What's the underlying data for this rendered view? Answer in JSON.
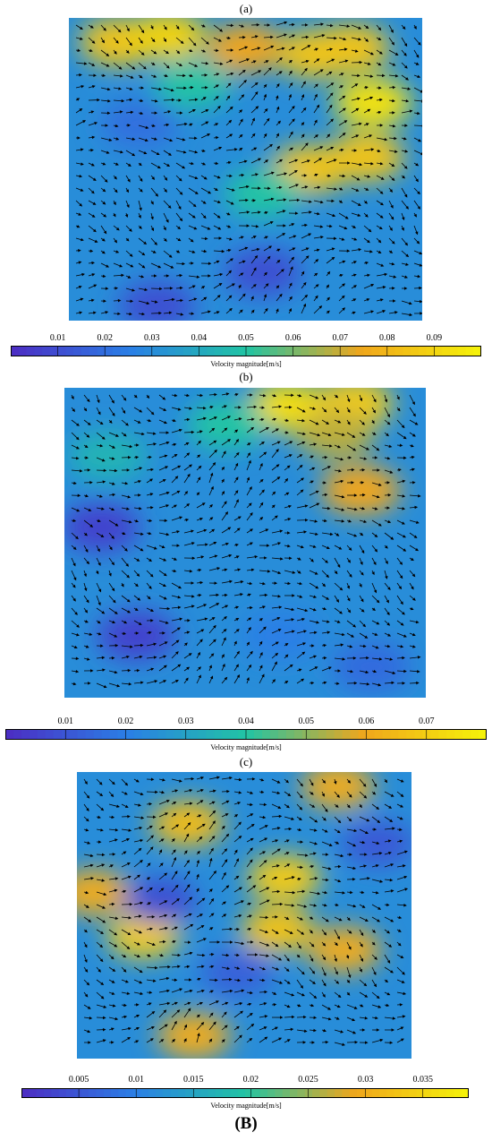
{
  "figure_label": "(B)",
  "colors": {
    "low": "#4b2fc4",
    "mid_low": "#2a7fe6",
    "mid": "#21c4a4",
    "mid_high": "#f0a61c",
    "high": "#f5f10a",
    "arrow": "#000000"
  },
  "chart_data": [
    {
      "type": "heatmap",
      "panel_label": "(a)",
      "colorbar_title": "Velocity magnitude[m/s]",
      "colorbar_ticks": [
        "0.01",
        "0.02",
        "0.03",
        "0.04",
        "0.05",
        "0.06",
        "0.07",
        "0.08",
        "0.09"
      ],
      "colorbar_range": [
        0.0,
        0.1
      ],
      "hotspots": [
        {
          "cx": 0.14,
          "cy": 0.08,
          "v": 0.085
        },
        {
          "cx": 0.28,
          "cy": 0.06,
          "v": 0.09
        },
        {
          "cx": 0.5,
          "cy": 0.1,
          "v": 0.075
        },
        {
          "cx": 0.7,
          "cy": 0.12,
          "v": 0.085
        },
        {
          "cx": 0.86,
          "cy": 0.28,
          "v": 0.095
        },
        {
          "cx": 0.8,
          "cy": 0.1,
          "v": 0.085
        },
        {
          "cx": 0.68,
          "cy": 0.5,
          "v": 0.085
        },
        {
          "cx": 0.84,
          "cy": 0.46,
          "v": 0.085
        },
        {
          "cx": 0.35,
          "cy": 0.22,
          "v": 0.05
        },
        {
          "cx": 0.2,
          "cy": 0.35,
          "v": 0.02
        },
        {
          "cx": 0.55,
          "cy": 0.58,
          "v": 0.05
        },
        {
          "cx": 0.55,
          "cy": 0.84,
          "v": 0.01
        },
        {
          "cx": 0.25,
          "cy": 0.95,
          "v": 0.01
        }
      ]
    },
    {
      "type": "heatmap",
      "panel_label": "(b)",
      "colorbar_title": "Velocity magnitude[m/s]",
      "colorbar_ticks": [
        "0.01",
        "0.02",
        "0.03",
        "0.04",
        "0.05",
        "0.06",
        "0.07"
      ],
      "colorbar_range": [
        0.0,
        0.08
      ],
      "hotspots": [
        {
          "cx": 0.62,
          "cy": 0.06,
          "v": 0.075
        },
        {
          "cx": 0.8,
          "cy": 0.05,
          "v": 0.07
        },
        {
          "cx": 0.75,
          "cy": 0.15,
          "v": 0.055
        },
        {
          "cx": 0.82,
          "cy": 0.33,
          "v": 0.06
        },
        {
          "cx": 0.45,
          "cy": 0.12,
          "v": 0.04
        },
        {
          "cx": 0.12,
          "cy": 0.22,
          "v": 0.035
        },
        {
          "cx": 0.1,
          "cy": 0.45,
          "v": 0.005
        },
        {
          "cx": 0.2,
          "cy": 0.8,
          "v": 0.005
        },
        {
          "cx": 0.6,
          "cy": 0.8,
          "v": 0.02
        },
        {
          "cx": 0.85,
          "cy": 0.9,
          "v": 0.015
        }
      ]
    },
    {
      "type": "heatmap",
      "panel_label": "(c)",
      "colorbar_title": "Velocity magnitude[m/s]",
      "colorbar_ticks": [
        "0.005",
        "0.01",
        "0.015",
        "0.02",
        "0.025",
        "0.03",
        "0.035"
      ],
      "colorbar_range": [
        0.0,
        0.039
      ],
      "hotspots": [
        {
          "cx": 0.33,
          "cy": 0.18,
          "v": 0.032
        },
        {
          "cx": 0.62,
          "cy": 0.37,
          "v": 0.034
        },
        {
          "cx": 0.6,
          "cy": 0.55,
          "v": 0.033
        },
        {
          "cx": 0.2,
          "cy": 0.57,
          "v": 0.034
        },
        {
          "cx": 0.8,
          "cy": 0.62,
          "v": 0.03
        },
        {
          "cx": 0.35,
          "cy": 0.92,
          "v": 0.03
        },
        {
          "cx": 0.78,
          "cy": 0.05,
          "v": 0.03
        },
        {
          "cx": 0.05,
          "cy": 0.42,
          "v": 0.03
        },
        {
          "cx": 0.25,
          "cy": 0.45,
          "v": 0.004
        },
        {
          "cx": 0.9,
          "cy": 0.25,
          "v": 0.005
        },
        {
          "cx": 0.48,
          "cy": 0.7,
          "v": 0.006
        }
      ]
    }
  ]
}
